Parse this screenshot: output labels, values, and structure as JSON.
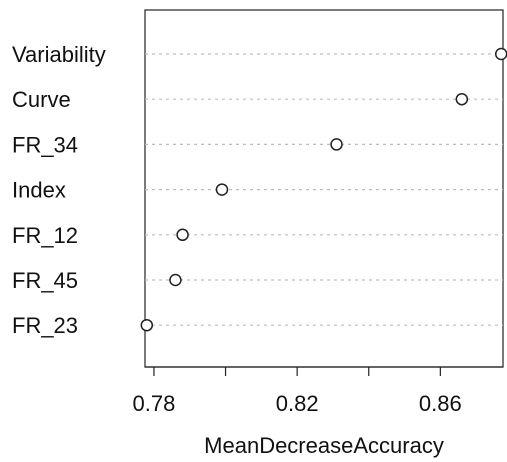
{
  "chart_data": {
    "type": "scatter",
    "variant": "dotchart",
    "title": "",
    "xlabel": "MeanDecreaseAccuracy",
    "ylabel": "",
    "categories": [
      "Variability",
      "Curve",
      "FR_34",
      "Index",
      "FR_12",
      "FR_45",
      "FR_23"
    ],
    "values": [
      0.877,
      0.866,
      0.831,
      0.799,
      0.788,
      0.786,
      0.778
    ],
    "xlim": [
      0.7775,
      0.8775
    ],
    "xticks": [
      0.78,
      0.82,
      0.86
    ],
    "xtick_labels": [
      "0.78",
      "0.82",
      "0.86"
    ],
    "grid": "dotted horizontal guide lines per category",
    "legend": "none",
    "colors": {
      "marker_stroke": "#222222",
      "marker_fill": "#ffffff",
      "guide_line": "#bdbdbd",
      "frame": "#222222"
    }
  }
}
